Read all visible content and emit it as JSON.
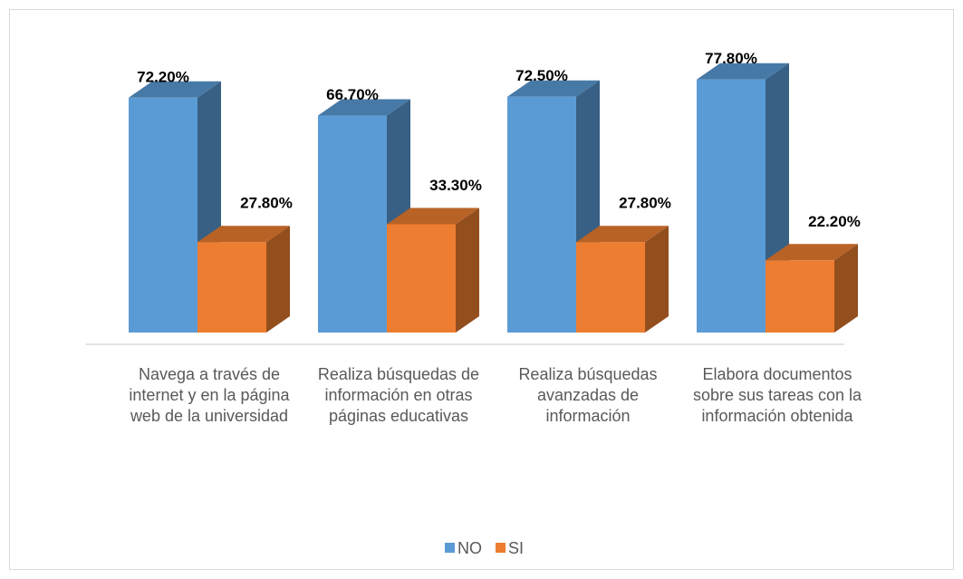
{
  "chart_data": {
    "type": "bar3d",
    "categories": [
      "Navega a través de internet y en la página web de la universidad",
      "Realiza búsquedas de información en otras páginas educativas",
      "Realiza búsquedas avanzadas de información",
      "Elabora documentos sobre sus tareas con la información obtenida"
    ],
    "series": [
      {
        "name": "NO",
        "color": "#5b9bd5",
        "values": [
          72.2,
          66.7,
          72.5,
          77.8
        ],
        "value_labels": [
          "72.20%",
          "66.70%",
          "72.50%",
          "77.80%"
        ]
      },
      {
        "name": "SI",
        "color": "#ed7d31",
        "values": [
          27.8,
          33.3,
          27.8,
          22.2
        ],
        "value_labels": [
          "27.80%",
          "33.30%",
          "27.80%",
          "22.20%"
        ]
      }
    ],
    "legend": "bottom"
  }
}
